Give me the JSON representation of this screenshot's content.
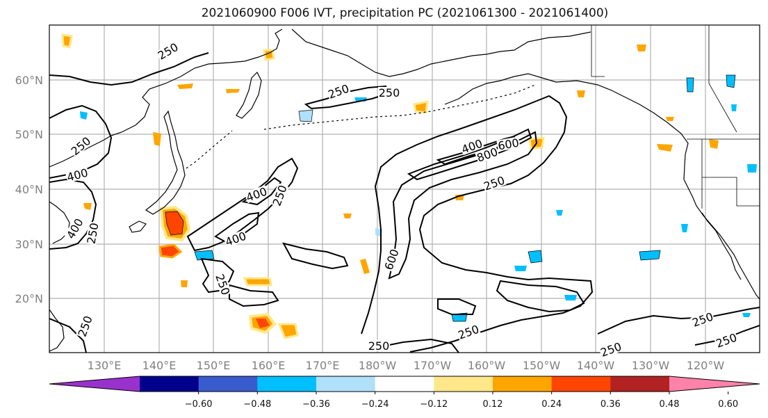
{
  "title": "2021060900 F006 IVT, precipitation PC (2021061300 - 2021061400)",
  "lat_labels": [
    "60°N",
    "50°N",
    "40°N",
    "30°N",
    "20°N"
  ],
  "lon_labels": [
    "130°E",
    "140°E",
    "150°E",
    "160°E",
    "170°E",
    "180°W",
    "170°W",
    "160°W",
    "150°W",
    "140°W",
    "130°W",
    "120°W"
  ],
  "colorbar": {
    "colors": [
      "#9932cc",
      "#00008b",
      "#3a5bcd",
      "#00bfff",
      "#b0e0fa",
      "#ffffff",
      "#ffe88a",
      "#ffa500",
      "#ff4500",
      "#b22222",
      "#ff82ab"
    ],
    "tick_labels": [
      "−0.60",
      "−0.48",
      "−0.36",
      "−0.24",
      "−0.12",
      "0.12",
      "0.24",
      "0.36",
      "0.48",
      "0.60"
    ]
  },
  "contour_labels": [
    {
      "text": "250"
    },
    {
      "text": "250"
    },
    {
      "text": "250"
    },
    {
      "text": "400"
    },
    {
      "text": "400"
    },
    {
      "text": "250"
    },
    {
      "text": "400"
    },
    {
      "text": "250"
    },
    {
      "text": "400"
    },
    {
      "text": "250"
    },
    {
      "text": "250"
    },
    {
      "text": "400"
    },
    {
      "text": "800"
    },
    {
      "text": "600"
    },
    {
      "text": "250"
    },
    {
      "text": "600"
    },
    {
      "text": "250"
    },
    {
      "text": "250"
    },
    {
      "text": "250"
    },
    {
      "text": "250"
    },
    {
      "text": "250"
    },
    {
      "text": "250"
    }
  ]
}
